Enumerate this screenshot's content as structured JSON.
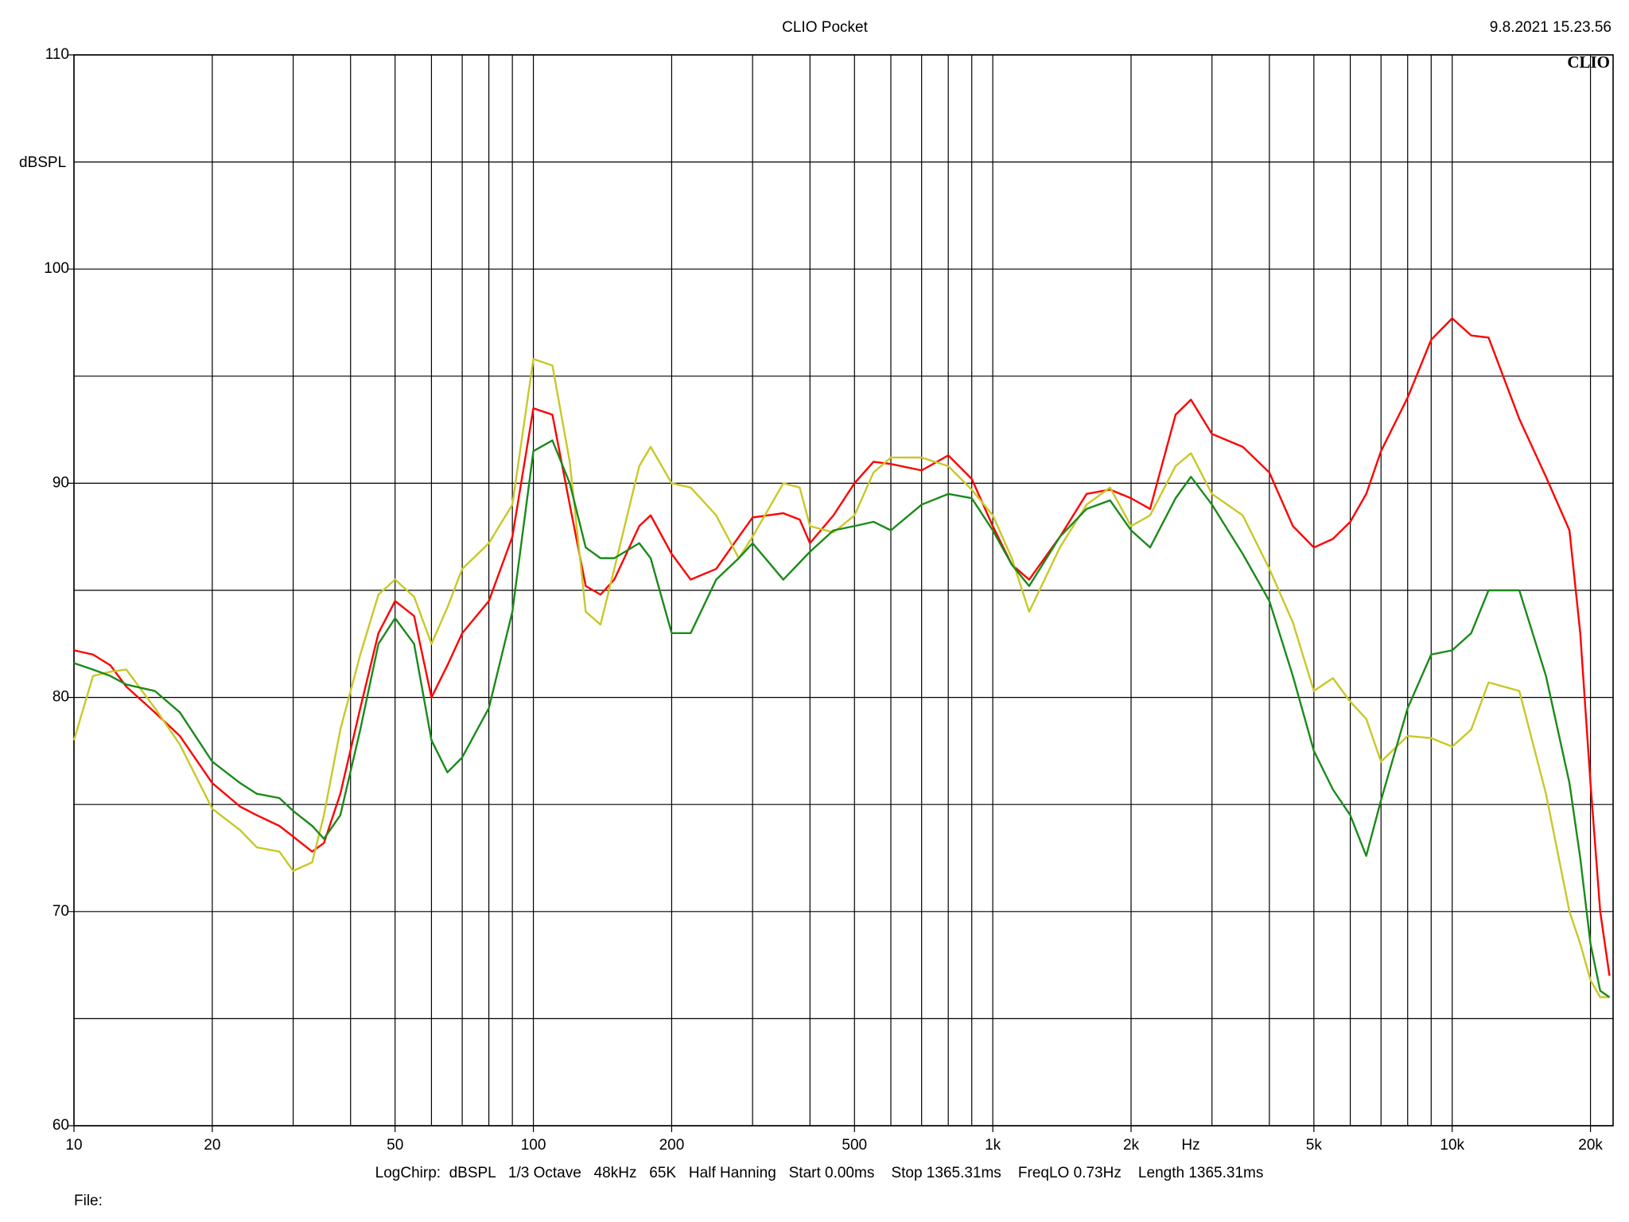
{
  "chart_data": {
    "type": "line",
    "title": "CLIO Pocket",
    "timestamp": "9.8.2021 15.23.56",
    "logo": "CLIO",
    "y_label": "dBSPL",
    "x_label": "Hz",
    "footer": "LogChirp:  dBSPL   1/3 Octave   48kHz   65K   Half Hanning   Start 0.00ms    Stop 1365.31ms    FreqLO 0.73Hz    Length 1365.31ms",
    "file_label": "File:",
    "x_scale": "log",
    "grid": true,
    "xlim": [
      10,
      22400
    ],
    "ylim": [
      60,
      110
    ],
    "xticks": [
      10,
      20,
      50,
      100,
      200,
      500,
      {
        "value": 1000,
        "label": "1k"
      },
      {
        "value": 2000,
        "label": "2k"
      },
      {
        "value": 5000,
        "label": "5k"
      },
      {
        "value": 10000,
        "label": "10k"
      },
      {
        "value": 20000,
        "label": "20k"
      }
    ],
    "xminor_ticks": [
      30,
      40,
      60,
      70,
      80,
      90,
      300,
      400,
      600,
      700,
      800,
      900,
      3000,
      4000,
      6000,
      7000,
      8000,
      9000
    ],
    "yticks": [
      60,
      70,
      80,
      90,
      100,
      110
    ],
    "yminor_ticks": [
      65,
      75,
      85,
      95,
      105
    ],
    "x": [
      10,
      11,
      12,
      13,
      15,
      17,
      20,
      23,
      25,
      28,
      30,
      33,
      35,
      38,
      42,
      46,
      50,
      55,
      60,
      65,
      70,
      80,
      90,
      100,
      110,
      120,
      130,
      140,
      150,
      170,
      180,
      200,
      220,
      250,
      280,
      300,
      350,
      380,
      400,
      450,
      500,
      550,
      600,
      700,
      800,
      900,
      1000,
      1100,
      1200,
      1400,
      1600,
      1800,
      2000,
      2200,
      2500,
      2700,
      3000,
      3500,
      4000,
      4500,
      5000,
      5500,
      6000,
      6500,
      7000,
      8000,
      9000,
      10000,
      11000,
      12000,
      14000,
      16000,
      18000,
      19000,
      20000,
      21000,
      22000
    ],
    "series": [
      {
        "color": "#ff0000",
        "values": [
          82.2,
          82.0,
          81.5,
          80.5,
          79.3,
          78.2,
          76.0,
          74.9,
          74.5,
          74.0,
          73.5,
          72.8,
          73.2,
          75.5,
          79.5,
          83.0,
          84.5,
          83.8,
          80.0,
          81.5,
          83.0,
          84.5,
          87.5,
          93.5,
          93.2,
          89.0,
          85.2,
          84.8,
          85.5,
          88.0,
          88.5,
          86.7,
          85.5,
          86.0,
          87.5,
          88.4,
          88.6,
          88.3,
          87.2,
          88.5,
          90.0,
          91.0,
          90.9,
          90.6,
          91.3,
          90.2,
          88.0,
          86.2,
          85.5,
          87.5,
          89.5,
          89.7,
          89.3,
          88.8,
          93.2,
          93.9,
          92.3,
          91.7,
          90.5,
          88.0,
          87.0,
          87.4,
          88.2,
          89.5,
          91.5,
          94.0,
          96.7,
          97.7,
          96.9,
          96.8,
          93.0,
          90.3,
          87.8,
          83.0,
          76.0,
          70.0,
          67.0
        ]
      },
      {
        "color": "#c8c828",
        "values": [
          78.0,
          81.0,
          81.2,
          81.3,
          79.5,
          77.8,
          74.8,
          73.8,
          73.0,
          72.8,
          71.9,
          72.3,
          74.5,
          78.5,
          82.0,
          84.8,
          85.5,
          84.7,
          82.5,
          84.2,
          86.0,
          87.2,
          89.0,
          95.8,
          95.5,
          91.0,
          84.0,
          83.4,
          86.0,
          90.8,
          91.7,
          90.0,
          89.8,
          88.5,
          86.5,
          87.5,
          90.0,
          89.8,
          88.0,
          87.7,
          88.5,
          90.5,
          91.2,
          91.2,
          90.8,
          89.7,
          88.5,
          86.5,
          84.0,
          87.0,
          89.0,
          89.8,
          88.0,
          88.5,
          90.8,
          91.4,
          89.5,
          88.5,
          86.0,
          83.5,
          80.3,
          80.9,
          79.8,
          79.0,
          77.0,
          78.2,
          78.1,
          77.7,
          78.5,
          80.7,
          80.3,
          75.5,
          70.0,
          68.5,
          66.8,
          66.0,
          66.0
        ]
      },
      {
        "color": "#1a8a1a",
        "values": [
          81.6,
          81.3,
          81.0,
          80.6,
          80.3,
          79.3,
          77.0,
          76.0,
          75.5,
          75.3,
          74.7,
          74.0,
          73.4,
          74.5,
          78.5,
          82.5,
          83.7,
          82.5,
          78.0,
          76.5,
          77.2,
          79.5,
          84.0,
          91.5,
          92.0,
          90.0,
          87.0,
          86.5,
          86.5,
          87.2,
          86.5,
          83.0,
          83.0,
          85.5,
          86.5,
          87.2,
          85.5,
          86.3,
          86.8,
          87.8,
          88.0,
          88.2,
          87.8,
          89.0,
          89.5,
          89.3,
          87.8,
          86.2,
          85.2,
          87.5,
          88.8,
          89.2,
          87.8,
          87.0,
          89.3,
          90.3,
          89.0,
          86.7,
          84.5,
          81.0,
          77.5,
          75.7,
          74.5,
          72.6,
          75.2,
          79.5,
          82.0,
          82.2,
          83.0,
          85.0,
          85.0,
          81.0,
          76.0,
          72.5,
          68.5,
          66.3,
          66.0
        ]
      }
    ]
  }
}
